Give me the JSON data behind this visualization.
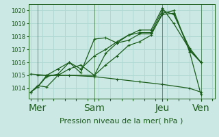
{
  "xlabel": "Pression niveau de la mer( hPa )",
  "bg_color": "#cce8e4",
  "grid_color": "#b0d8d2",
  "line_color": "#1a5c1a",
  "ylim": [
    1013.2,
    1020.5
  ],
  "xlim": [
    -0.1,
    8.1
  ],
  "day_labels": [
    "Mer",
    "Sam",
    "Jeu",
    "Ven"
  ],
  "day_positions": [
    0.3,
    2.8,
    5.8,
    7.5
  ],
  "vline_positions": [
    0.3,
    2.8,
    5.8,
    7.5
  ],
  "ytick_values": [
    1014,
    1015,
    1016,
    1017,
    1018,
    1019,
    1020
  ],
  "grid_xticks": [
    0,
    0.5,
    1,
    1.5,
    2,
    2.5,
    3,
    3.5,
    4,
    4.5,
    5,
    5.5,
    6,
    6.5,
    7,
    7.5,
    8
  ],
  "line1_x": [
    0,
    0.3,
    0.7,
    1.2,
    1.7,
    2.2,
    2.8,
    3.3,
    3.8,
    4.3,
    4.8,
    5.3,
    5.8,
    6.3,
    7.0,
    7.5
  ],
  "line1_y": [
    1013.7,
    1014.2,
    1014.1,
    1015.0,
    1015.5,
    1015.8,
    1015.0,
    1016.7,
    1017.5,
    1017.7,
    1018.2,
    1018.2,
    1019.7,
    1019.8,
    1016.9,
    1016.0
  ],
  "line2_x": [
    0,
    0.3,
    0.7,
    1.2,
    1.7,
    2.2,
    2.8,
    3.3,
    3.8,
    4.3,
    4.8,
    5.3,
    5.8,
    6.3,
    7.0,
    7.5
  ],
  "line2_y": [
    1013.7,
    1014.1,
    1015.0,
    1015.5,
    1016.0,
    1015.5,
    1016.5,
    1017.0,
    1017.6,
    1018.1,
    1018.3,
    1018.3,
    1020.0,
    1019.7,
    1017.1,
    1016.0
  ],
  "line3_x": [
    0,
    0.3,
    0.7,
    1.2,
    1.7,
    2.2,
    2.8,
    3.3,
    3.8,
    4.3,
    4.8,
    5.3,
    5.8,
    6.3,
    7.0,
    7.5
  ],
  "line3_y": [
    1013.7,
    1014.1,
    1014.9,
    1015.1,
    1016.0,
    1015.2,
    1017.8,
    1017.9,
    1017.5,
    1018.1,
    1018.5,
    1018.5,
    1020.2,
    1019.0,
    1017.0,
    1016.0
  ],
  "line4_x": [
    0,
    0.7,
    1.7,
    2.8,
    3.8,
    4.8,
    5.8,
    7.0,
    7.5
  ],
  "line4_y": [
    1015.1,
    1015.0,
    1015.0,
    1014.9,
    1014.7,
    1014.5,
    1014.3,
    1014.0,
    1013.7
  ],
  "line5_x": [
    0.3,
    2.8,
    3.3,
    3.8,
    4.3,
    4.8,
    5.3,
    5.8,
    6.3,
    7.0,
    7.5
  ],
  "line5_y": [
    1015.0,
    1015.0,
    1015.8,
    1016.5,
    1017.3,
    1017.6,
    1018.1,
    1019.8,
    1020.0,
    1016.8,
    1013.5
  ]
}
